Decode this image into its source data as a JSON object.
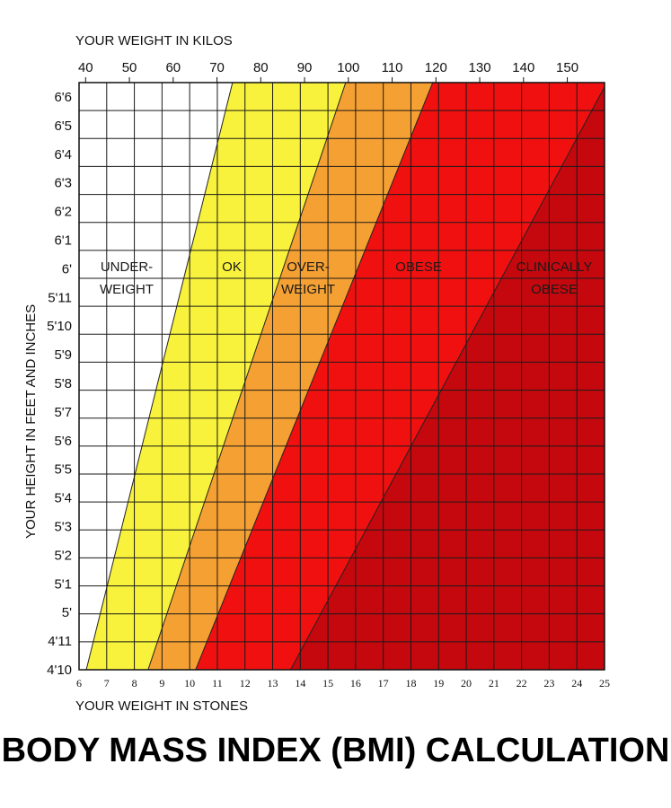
{
  "colors": {
    "underweight": "#ffffff",
    "ok": "#f8f23c",
    "overweight": "#f5a032",
    "obese": "#f01010",
    "clinically_obese": "#c4080e",
    "grid": "#1a1a1a"
  },
  "title": "BODY MASS INDEX (BMI) CALCULATION",
  "chart_data": {
    "type": "area",
    "title": "BODY MASS INDEX (BMI) CALCULATION",
    "xlabel_top": "YOUR WEIGHT IN KILOS",
    "xlabel_bottom": "YOUR WEIGHT IN STONES",
    "ylabel": "YOUR HEIGHT IN FEET AND INCHES",
    "kilo_ticks": [
      "40",
      "50",
      "60",
      "70",
      "80",
      "90",
      "100",
      "110",
      "120",
      "130",
      "140",
      "150"
    ],
    "kilo_values": [
      40,
      50,
      60,
      70,
      80,
      90,
      100,
      110,
      120,
      130,
      140,
      150
    ],
    "xlim_kilos": [
      38.5,
      158.5
    ],
    "stone_ticks": [
      "6",
      "7",
      "8",
      "9",
      "10",
      "11",
      "12",
      "13",
      "14",
      "15",
      "16",
      "17",
      "18",
      "19",
      "20",
      "21",
      "22",
      "23",
      "24",
      "25"
    ],
    "height_ticks": [
      "4'10",
      "4'11",
      "5'",
      "5'1",
      "5'2",
      "5'3",
      "5'4",
      "5'5",
      "5'6",
      "5'7",
      "5'8",
      "5'9",
      "5'10",
      "5'11",
      "6'",
      "6'1",
      "6'2",
      "6'3",
      "6'4",
      "6'5",
      "6'6"
    ],
    "height_inches": [
      58,
      59,
      60,
      61,
      62,
      63,
      64,
      65,
      66,
      67,
      68,
      69,
      70,
      71,
      72,
      73,
      74,
      75,
      76,
      77,
      78
    ],
    "ylim_inches": [
      58,
      78.5
    ],
    "grid": true,
    "zones": [
      {
        "label_lines": [
          "UNDER-",
          "WEIGHT"
        ],
        "color_key": "underweight",
        "bmi_upper": 18.5
      },
      {
        "label_lines": [
          "OK"
        ],
        "color_key": "ok",
        "bmi_upper": 25
      },
      {
        "label_lines": [
          "OVER-",
          "WEIGHT"
        ],
        "color_key": "overweight",
        "bmi_upper": 30
      },
      {
        "label_lines": [
          "OBESE"
        ],
        "color_key": "obese",
        "bmi_upper": 40
      },
      {
        "label_lines": [
          "CLINICALLY",
          "OBESE"
        ],
        "color_key": "clinically_obese",
        "bmi_upper": null
      }
    ]
  }
}
